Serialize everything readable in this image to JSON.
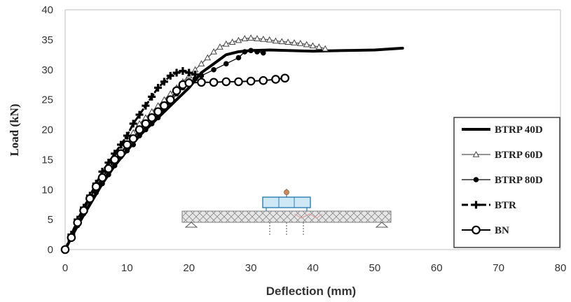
{
  "chart_data": {
    "type": "line",
    "xlabel": "Deflection (mm)",
    "ylabel": "Load (kN)",
    "xlim": [
      0,
      80
    ],
    "ylim": [
      0,
      40
    ],
    "xticks": [
      0,
      10,
      20,
      30,
      40,
      50,
      60,
      70,
      80
    ],
    "yticks": [
      0,
      5,
      10,
      15,
      20,
      25,
      30,
      35,
      40
    ],
    "x_tick_labels": [
      "0",
      "10",
      "20",
      "30",
      "40",
      "50",
      "60",
      "70",
      "80"
    ],
    "y_tick_labels": [
      "0",
      "5",
      "10",
      "15",
      "20",
      "25",
      "30",
      "35",
      "40"
    ],
    "grid": false,
    "legend_position": "right",
    "inset": "test setup sketch (beam with load frame)",
    "series": [
      {
        "name": "BTRP 40D",
        "marker": "none",
        "line": "thick-solid",
        "color": "#000000",
        "points": [
          [
            0,
            0
          ],
          [
            2,
            4
          ],
          [
            4,
            7.5
          ],
          [
            6,
            11
          ],
          [
            8,
            14
          ],
          [
            10,
            16.5
          ],
          [
            12,
            19
          ],
          [
            14,
            21
          ],
          [
            16,
            23
          ],
          [
            18,
            25
          ],
          [
            20,
            27
          ],
          [
            22,
            29.5
          ],
          [
            24,
            31
          ],
          [
            26,
            32.5
          ],
          [
            28,
            33
          ],
          [
            30,
            33.2
          ],
          [
            33,
            33.3
          ],
          [
            36,
            33.2
          ],
          [
            40,
            33.1
          ],
          [
            45,
            33.2
          ],
          [
            50,
            33.3
          ],
          [
            54.5,
            33.6
          ]
        ]
      },
      {
        "name": "BTRP 60D",
        "marker": "triangle-open",
        "line": "thin-solid",
        "color": "#555555",
        "points": [
          [
            0,
            0
          ],
          [
            1,
            2.5
          ],
          [
            2,
            5
          ],
          [
            3,
            7
          ],
          [
            4,
            9
          ],
          [
            5,
            11
          ],
          [
            6,
            12.5
          ],
          [
            7,
            14
          ],
          [
            8,
            15.5
          ],
          [
            9,
            17
          ],
          [
            10,
            18.5
          ],
          [
            11,
            19.5
          ],
          [
            12,
            21
          ],
          [
            13,
            22
          ],
          [
            14,
            23
          ],
          [
            15,
            24
          ],
          [
            16,
            25
          ],
          [
            17,
            26
          ],
          [
            18,
            27
          ],
          [
            19,
            28
          ],
          [
            20,
            29
          ],
          [
            21,
            30
          ],
          [
            22,
            31
          ],
          [
            23,
            32
          ],
          [
            24,
            33
          ],
          [
            25,
            33.8
          ],
          [
            26,
            34.3
          ],
          [
            27,
            34.6
          ],
          [
            28,
            34.9
          ],
          [
            29,
            35.2
          ],
          [
            30,
            35.3
          ],
          [
            31,
            35.2
          ],
          [
            32,
            35.1
          ],
          [
            33,
            35
          ],
          [
            34,
            34.8
          ],
          [
            35,
            34.7
          ],
          [
            36,
            34.6
          ],
          [
            37,
            34.5
          ],
          [
            38,
            34.4
          ],
          [
            39,
            34.2
          ],
          [
            40,
            34
          ],
          [
            41,
            33.8
          ],
          [
            42,
            33.5
          ]
        ]
      },
      {
        "name": "BTRP 80D",
        "marker": "circle-filled",
        "line": "thin-solid",
        "color": "#000000",
        "points": [
          [
            0,
            0
          ],
          [
            1,
            2
          ],
          [
            2,
            4
          ],
          [
            3,
            6
          ],
          [
            4,
            8
          ],
          [
            5,
            9.5
          ],
          [
            6,
            11
          ],
          [
            7,
            12.5
          ],
          [
            8,
            14
          ],
          [
            9,
            15.5
          ],
          [
            10,
            16.5
          ],
          [
            11,
            17.5
          ],
          [
            12,
            19
          ],
          [
            13,
            20
          ],
          [
            14,
            21
          ],
          [
            15,
            22
          ],
          [
            16,
            23.5
          ],
          [
            17,
            24.5
          ],
          [
            18,
            26
          ],
          [
            19,
            27
          ],
          [
            20,
            28
          ],
          [
            21,
            28.5
          ],
          [
            22,
            29
          ],
          [
            24,
            30
          ],
          [
            26,
            31
          ],
          [
            28,
            32
          ],
          [
            29,
            33
          ],
          [
            30,
            33.2
          ],
          [
            31,
            33
          ],
          [
            32,
            32.8
          ]
        ]
      },
      {
        "name": "BTR",
        "marker": "plus",
        "line": "dash-dot",
        "color": "#000000",
        "points": [
          [
            0,
            0
          ],
          [
            1,
            2.5
          ],
          [
            2,
            5
          ],
          [
            3,
            7
          ],
          [
            4,
            9
          ],
          [
            5,
            11
          ],
          [
            6,
            13
          ],
          [
            7,
            14.5
          ],
          [
            8,
            16
          ],
          [
            9,
            17.5
          ],
          [
            10,
            19
          ],
          [
            11,
            21
          ],
          [
            12,
            22.5
          ],
          [
            13,
            24
          ],
          [
            14,
            25.5
          ],
          [
            15,
            27
          ],
          [
            16,
            28
          ],
          [
            17,
            29
          ],
          [
            18,
            29.5
          ],
          [
            19,
            29.8
          ],
          [
            20,
            29.5
          ],
          [
            21,
            29.2
          ]
        ]
      },
      {
        "name": "BN",
        "marker": "circle-open",
        "line": "solid",
        "color": "#000000",
        "points": [
          [
            0,
            0
          ],
          [
            1,
            2
          ],
          [
            2,
            4.5
          ],
          [
            3,
            6.5
          ],
          [
            4,
            8.5
          ],
          [
            5,
            10.5
          ],
          [
            6,
            12
          ],
          [
            7,
            13.5
          ],
          [
            8,
            15
          ],
          [
            9,
            16
          ],
          [
            10,
            17.5
          ],
          [
            11,
            18.5
          ],
          [
            12,
            20
          ],
          [
            13,
            21
          ],
          [
            14,
            22
          ],
          [
            15,
            23
          ],
          [
            16,
            24
          ],
          [
            17,
            25
          ],
          [
            18,
            26.5
          ],
          [
            19,
            27.5
          ],
          [
            20,
            27.8
          ],
          [
            22,
            27.9
          ],
          [
            24,
            27.9
          ],
          [
            26,
            28
          ],
          [
            28,
            28
          ],
          [
            30,
            28.1
          ],
          [
            32,
            28.2
          ],
          [
            34,
            28.4
          ],
          [
            35.5,
            28.6
          ]
        ]
      }
    ]
  }
}
